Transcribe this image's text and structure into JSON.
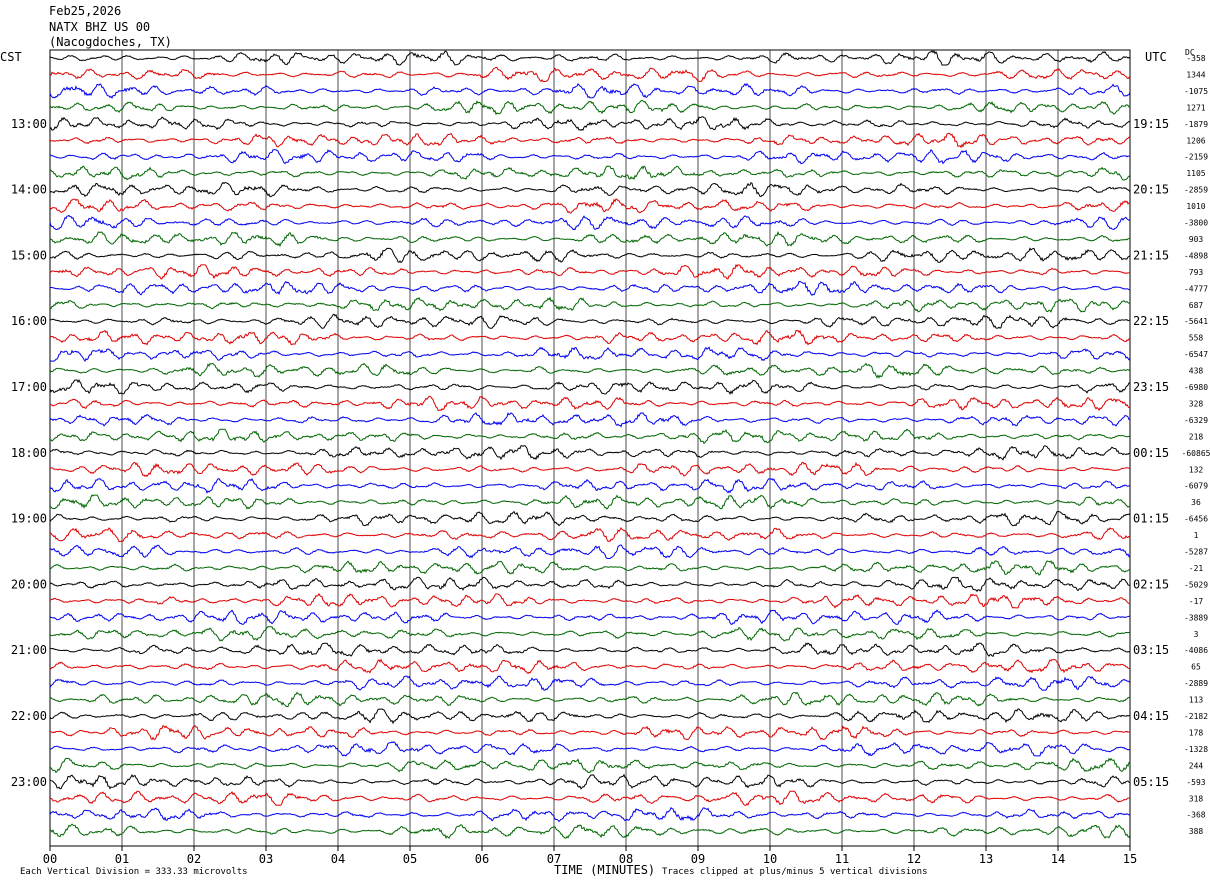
{
  "header": {
    "date": "Feb25,2026",
    "station": "NATX BHZ US 00",
    "location": "(Nacogdoches, TX)"
  },
  "left_tz": "CST",
  "right_tz": "UTC",
  "dc_label": "DC",
  "footer": {
    "vertical_division": "Each Vertical Division =  333.33 microvolts",
    "xaxis_title": "TIME (MINUTES)",
    "clip_note": "Traces clipped at plus/minus 5 vertical divisions"
  },
  "colors": {
    "trace_cycle": [
      "#000000",
      "#dd0000",
      "#0000ee",
      "#006600"
    ],
    "grid": "#000000",
    "background": "#ffffff"
  },
  "chart_data": {
    "type": "line",
    "title": "NATX BHZ US 00 (Nacogdoches, TX)",
    "xlabel": "TIME (MINUTES)",
    "xlim": [
      0,
      15
    ],
    "x_ticks": [
      "00",
      "01",
      "02",
      "03",
      "04",
      "05",
      "06",
      "07",
      "08",
      "09",
      "10",
      "11",
      "12",
      "13",
      "14",
      "15"
    ],
    "rows_count": 48,
    "row_minutes": 15,
    "left_hour_labels": [
      {
        "row": 4,
        "text": "13:00"
      },
      {
        "row": 8,
        "text": "14:00"
      },
      {
        "row": 12,
        "text": "15:00"
      },
      {
        "row": 16,
        "text": "16:00"
      },
      {
        "row": 20,
        "text": "17:00"
      },
      {
        "row": 24,
        "text": "18:00"
      },
      {
        "row": 28,
        "text": "19:00"
      },
      {
        "row": 32,
        "text": "20:00"
      },
      {
        "row": 36,
        "text": "21:00"
      },
      {
        "row": 40,
        "text": "22:00"
      },
      {
        "row": 44,
        "text": "23:00"
      }
    ],
    "right_hour_labels": [
      {
        "row": 4,
        "text": "19:15"
      },
      {
        "row": 8,
        "text": "20:15"
      },
      {
        "row": 12,
        "text": "21:15"
      },
      {
        "row": 16,
        "text": "22:15"
      },
      {
        "row": 20,
        "text": "23:15"
      },
      {
        "row": 24,
        "text": "00:15"
      },
      {
        "row": 28,
        "text": "01:15"
      },
      {
        "row": 32,
        "text": "02:15"
      },
      {
        "row": 36,
        "text": "03:15"
      },
      {
        "row": 40,
        "text": "04:15"
      },
      {
        "row": 44,
        "text": "05:15"
      }
    ],
    "dc_offsets": [
      "-358",
      "1344",
      "-1075",
      "1271",
      "-1879",
      "1206",
      "-2159",
      "1105",
      "-2859",
      "1010",
      "-3800",
      "903",
      "-4898",
      "793",
      "-4777",
      "687",
      "-5641",
      "558",
      "-6547",
      "438",
      "-6980",
      "328",
      "-6329",
      "218",
      "-60865",
      "132",
      "-6079",
      "36",
      "-6456",
      "1",
      "-5287",
      "-21",
      "-5029",
      "-17",
      "-3889",
      "3",
      "-4086",
      "65",
      "-2889",
      "113",
      "-2182",
      "178",
      "-1328",
      "244",
      "-593",
      "318",
      "-368",
      "388"
    ]
  }
}
